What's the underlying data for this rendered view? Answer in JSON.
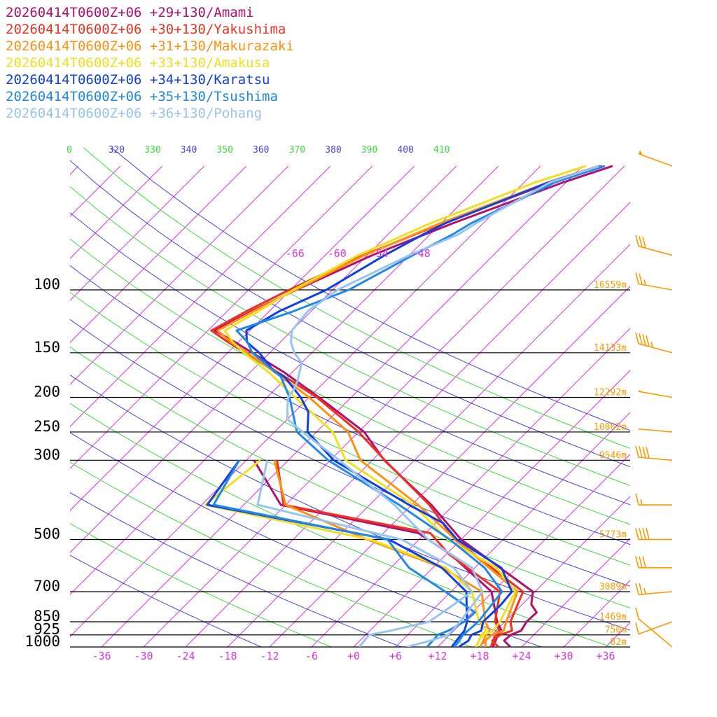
{
  "chart_data": {
    "type": "line",
    "chart_kind": "skew-T log-P sounding",
    "title": "",
    "xlabel": "",
    "ylabel": "",
    "pressure_levels": [
      100,
      150,
      200,
      250,
      300,
      500,
      700,
      850,
      925,
      1000
    ],
    "height_labels": [
      {
        "p": 100,
        "text": "16559m"
      },
      {
        "p": 150,
        "text": "14133m"
      },
      {
        "p": 200,
        "text": "12292m"
      },
      {
        "p": 250,
        "text": "10862m"
      },
      {
        "p": 300,
        "text": "9546m"
      },
      {
        "p": 500,
        "text": "5773m"
      },
      {
        "p": 700,
        "text": "3089m"
      },
      {
        "p": 850,
        "text": "1469m"
      },
      {
        "p": 925,
        "text": "750m"
      },
      {
        "p": 1000,
        "text": "82m"
      }
    ],
    "temperature_ticks": [
      "-36",
      "-30",
      "-24",
      "-18",
      "-12",
      "-6",
      "+0",
      "+6",
      "+12",
      "+18",
      "+24",
      "+30",
      "+36"
    ],
    "isotherm_top_labels": [
      "-66",
      "-60",
      "-54",
      "-48"
    ],
    "theta_labels": [
      {
        "text": "0",
        "color": "#3cdc3c"
      },
      {
        "text": "320",
        "color": "#4444dd"
      },
      {
        "text": "330",
        "color": "#3cdc3c"
      },
      {
        "text": "340",
        "color": "#4444dd"
      },
      {
        "text": "350",
        "color": "#3cdc3c"
      },
      {
        "text": "360",
        "color": "#4444dd"
      },
      {
        "text": "370",
        "color": "#3cdc3c"
      },
      {
        "text": "380",
        "color": "#4444dd"
      },
      {
        "text": "390",
        "color": "#3cdc3c"
      },
      {
        "text": "400",
        "color": "#4444dd"
      },
      {
        "text": "410",
        "color": "#3cdc3c"
      }
    ],
    "series": [
      {
        "name": "20260414T0600Z+06 +29+130/Amami",
        "color": "#b0106e",
        "temperature": [
          [
            1000,
            22.4
          ],
          [
            960,
            20.6
          ],
          [
            925,
            20.7
          ],
          [
            900,
            21.6
          ],
          [
            850,
            21.1
          ],
          [
            800,
            21.2
          ],
          [
            760,
            19.3
          ],
          [
            700,
            17.7
          ],
          [
            500,
            0.0
          ],
          [
            400,
            -9.2
          ],
          [
            300,
            -22.3
          ],
          [
            250,
            -29.2
          ],
          [
            200,
            -40.6
          ],
          [
            170,
            -49.2
          ],
          [
            150,
            -56.5
          ],
          [
            140,
            -60.5
          ],
          [
            130,
            -65.0
          ],
          [
            115,
            -62.6
          ],
          [
            100,
            -59.2
          ],
          [
            80,
            -53.3
          ],
          [
            65,
            -46.3
          ],
          [
            50,
            -36.4
          ],
          [
            45,
            -31.7
          ]
        ],
        "dewpoint": [
          [
            1000,
            19.9
          ],
          [
            925,
            18.9
          ],
          [
            900,
            18.8
          ],
          [
            850,
            16.9
          ],
          [
            700,
            11.8
          ],
          [
            550,
            0.6
          ],
          [
            480,
            -7.0
          ],
          [
            400,
            -30.7
          ],
          [
            300,
            -40.9
          ]
        ]
      },
      {
        "name": "20260414T0600Z+06 +30+130/Yakushima",
        "color": "#f03020",
        "temperature": [
          [
            1000,
            20.7
          ],
          [
            960,
            18.9
          ],
          [
            925,
            19.2
          ],
          [
            900,
            20.3
          ],
          [
            850,
            18.8
          ],
          [
            700,
            16.3
          ],
          [
            500,
            -0.9
          ],
          [
            400,
            -9.5
          ],
          [
            300,
            -22.2
          ],
          [
            250,
            -30.0
          ],
          [
            200,
            -40.9
          ],
          [
            170,
            -50.1
          ],
          [
            150,
            -57.5
          ],
          [
            140,
            -61.5
          ],
          [
            130,
            -65.5
          ],
          [
            115,
            -63.3
          ],
          [
            100,
            -60.2
          ],
          [
            80,
            -54.6
          ],
          [
            65,
            -47.7
          ],
          [
            50,
            -38.1
          ],
          [
            45,
            -33.2
          ]
        ],
        "dewpoint": [
          [
            1000,
            19.6
          ],
          [
            925,
            18.5
          ],
          [
            900,
            18.5
          ],
          [
            850,
            16.6
          ],
          [
            700,
            13.0
          ],
          [
            550,
            0.4
          ],
          [
            480,
            -5.3
          ],
          [
            400,
            -30.3
          ],
          [
            300,
            -37.6
          ]
        ]
      },
      {
        "name": "20260414T0600Z+06 +31+130/Makurazaki",
        "color": "#ff9010",
        "temperature": [
          [
            1000,
            18.9
          ],
          [
            960,
            17.9
          ],
          [
            925,
            18.0
          ],
          [
            900,
            19.1
          ],
          [
            850,
            18.2
          ],
          [
            700,
            15.5
          ],
          [
            500,
            -0.8
          ],
          [
            400,
            -11.1
          ],
          [
            300,
            -25.7
          ],
          [
            250,
            -31.5
          ],
          [
            200,
            -42.0
          ],
          [
            170,
            -50.5
          ],
          [
            150,
            -57.2
          ],
          [
            140,
            -61.1
          ],
          [
            130,
            -64.6
          ],
          [
            115,
            -62.3
          ],
          [
            100,
            -59.3
          ],
          [
            80,
            -54.4
          ],
          [
            65,
            -48.1
          ],
          [
            50,
            -38.6
          ],
          [
            45,
            -33.7
          ]
        ],
        "dewpoint": [
          [
            1000,
            18.1
          ],
          [
            925,
            17.2
          ],
          [
            900,
            17.1
          ],
          [
            850,
            15.2
          ],
          [
            700,
            10.4
          ],
          [
            600,
            1.4
          ],
          [
            500,
            -13.4
          ],
          [
            400,
            -30.0
          ],
          [
            300,
            -38.0
          ]
        ]
      },
      {
        "name": "20260414T0600Z+06 +33+130/Amakusa",
        "color": "#f0e020",
        "temperature": [
          [
            1000,
            17.5
          ],
          [
            960,
            17.0
          ],
          [
            925,
            16.8
          ],
          [
            900,
            17.6
          ],
          [
            850,
            17.3
          ],
          [
            700,
            15.2
          ],
          [
            600,
            9.1
          ],
          [
            500,
            -1.9
          ],
          [
            400,
            -11.8
          ],
          [
            300,
            -27.8
          ],
          [
            250,
            -33.7
          ],
          [
            200,
            -44.0
          ],
          [
            170,
            -51.4
          ],
          [
            150,
            -57.7
          ],
          [
            140,
            -60.8
          ],
          [
            130,
            -63.6
          ],
          [
            115,
            -61.6
          ],
          [
            100,
            -59.6
          ],
          [
            80,
            -55.3
          ],
          [
            65,
            -49.5
          ],
          [
            50,
            -40.4
          ],
          [
            45,
            -35.5
          ]
        ],
        "dewpoint": [
          [
            1000,
            17.5
          ],
          [
            925,
            16.5
          ],
          [
            900,
            16.6
          ],
          [
            850,
            14.3
          ],
          [
            700,
            9.0
          ],
          [
            600,
            1.9
          ],
          [
            500,
            -13.0
          ],
          [
            400,
            -41.5
          ],
          [
            300,
            -40.0
          ]
        ]
      },
      {
        "name": "20260414T0600Z+06 +34+130/Karatsu",
        "color": "#1040e0",
        "temperature": [
          [
            1000,
            15.0
          ],
          [
            960,
            15.5
          ],
          [
            925,
            15.1
          ],
          [
            900,
            15.9
          ],
          [
            850,
            14.9
          ],
          [
            760,
            15.0
          ],
          [
            700,
            14.7
          ],
          [
            600,
            9.8
          ],
          [
            500,
            -0.6
          ],
          [
            450,
            -4.9
          ],
          [
            400,
            -12.4
          ],
          [
            300,
            -29.5
          ],
          [
            250,
            -37.3
          ],
          [
            220,
            -40.0
          ],
          [
            200,
            -43.2
          ],
          [
            175,
            -48.5
          ],
          [
            170,
            -50.5
          ],
          [
            150,
            -55.5
          ],
          [
            140,
            -58.8
          ],
          [
            130,
            -60.5
          ],
          [
            115,
            -58.6
          ],
          [
            100,
            -54.9
          ],
          [
            80,
            -51.5
          ],
          [
            70,
            -49.0
          ],
          [
            65,
            -47.4
          ],
          [
            50,
            -38.5
          ],
          [
            45,
            -33.5
          ]
        ],
        "dewpoint": [
          [
            1000,
            14.0
          ],
          [
            925,
            13.6
          ],
          [
            900,
            13.5
          ],
          [
            850,
            12.6
          ],
          [
            700,
            8.2
          ],
          [
            600,
            1.3
          ],
          [
            500,
            -10.3
          ],
          [
            400,
            -41.2
          ],
          [
            300,
            -43.0
          ]
        ]
      },
      {
        "name": "20260414T0600Z+06 +35+130/Tsushima",
        "color": "#2088e8",
        "temperature": [
          [
            1000,
            14.4
          ],
          [
            960,
            14.2
          ],
          [
            925,
            13.9
          ],
          [
            850,
            14.2
          ],
          [
            700,
            13.3
          ],
          [
            600,
            7.4
          ],
          [
            500,
            -1.6
          ],
          [
            400,
            -13.8
          ],
          [
            300,
            -30.3
          ],
          [
            250,
            -38.8
          ],
          [
            200,
            -44.8
          ],
          [
            175,
            -49.0
          ],
          [
            150,
            -56.5
          ],
          [
            140,
            -58.7
          ],
          [
            130,
            -61.9
          ],
          [
            115,
            -56.6
          ],
          [
            100,
            -51.7
          ],
          [
            80,
            -47.5
          ],
          [
            70,
            -44.8
          ],
          [
            65,
            -43.7
          ],
          [
            50,
            -37.6
          ],
          [
            45,
            -32.8
          ]
        ],
        "dewpoint": [
          [
            1000,
            10.5
          ],
          [
            925,
            10.3
          ],
          [
            900,
            11.2
          ],
          [
            850,
            12.2
          ],
          [
            800,
            12.4
          ],
          [
            700,
            5.2
          ],
          [
            600,
            -3.4
          ],
          [
            500,
            -10.5
          ],
          [
            400,
            -40.3
          ],
          [
            300,
            -43.0
          ]
        ]
      },
      {
        "name": "20260414T0600Z+06 +36+130/Pohang",
        "color": "#98c4f0",
        "temperature": [
          [
            1000,
            7.6
          ],
          [
            960,
            10.1
          ],
          [
            925,
            11.8
          ],
          [
            850,
            11.6
          ],
          [
            700,
            10.5
          ],
          [
            600,
            5.6
          ],
          [
            500,
            -4.7
          ],
          [
            400,
            -14.5
          ],
          [
            300,
            -28.7
          ],
          [
            250,
            -38.0
          ],
          [
            230,
            -42.0
          ],
          [
            215,
            -43.5
          ],
          [
            200,
            -45.0
          ],
          [
            190,
            -45.3
          ],
          [
            180,
            -46.0
          ],
          [
            160,
            -48.0
          ],
          [
            150,
            -50.5
          ],
          [
            140,
            -52.5
          ],
          [
            130,
            -54.0
          ],
          [
            115,
            -54.5
          ],
          [
            100,
            -53.3
          ],
          [
            80,
            -48.0
          ],
          [
            70,
            -44.0
          ],
          [
            65,
            -43.0
          ],
          [
            50,
            -38.3
          ],
          [
            45,
            -33.6
          ]
        ],
        "dewpoint": [
          [
            1000,
            0.8
          ],
          [
            925,
            0.5
          ],
          [
            900,
            3.0
          ],
          [
            850,
            7.2
          ],
          [
            700,
            9.0
          ],
          [
            600,
            3.0
          ],
          [
            500,
            -8.5
          ],
          [
            400,
            -34.0
          ],
          [
            300,
            -39.0
          ]
        ]
      }
    ],
    "wind_barbs": [
      {
        "p": 45,
        "dir": 250,
        "kt": 50
      },
      {
        "p": 80,
        "dir": 255,
        "kt": 30
      },
      {
        "p": 100,
        "dir": 260,
        "kt": 25
      },
      {
        "p": 150,
        "dir": 255,
        "kt": 45
      },
      {
        "p": 200,
        "dir": 260,
        "kt": 50
      },
      {
        "p": 250,
        "dir": 265,
        "kt": 50
      },
      {
        "p": 300,
        "dir": 265,
        "kt": 40
      },
      {
        "p": 400,
        "dir": 270,
        "kt": 15
      },
      {
        "p": 500,
        "dir": 270,
        "kt": 40
      },
      {
        "p": 600,
        "dir": 270,
        "kt": 30
      },
      {
        "p": 700,
        "dir": 275,
        "kt": 25
      },
      {
        "p": 850,
        "dir": 290,
        "kt": 10
      },
      {
        "p": 1000,
        "dir": 230,
        "kt": 10
      }
    ]
  }
}
